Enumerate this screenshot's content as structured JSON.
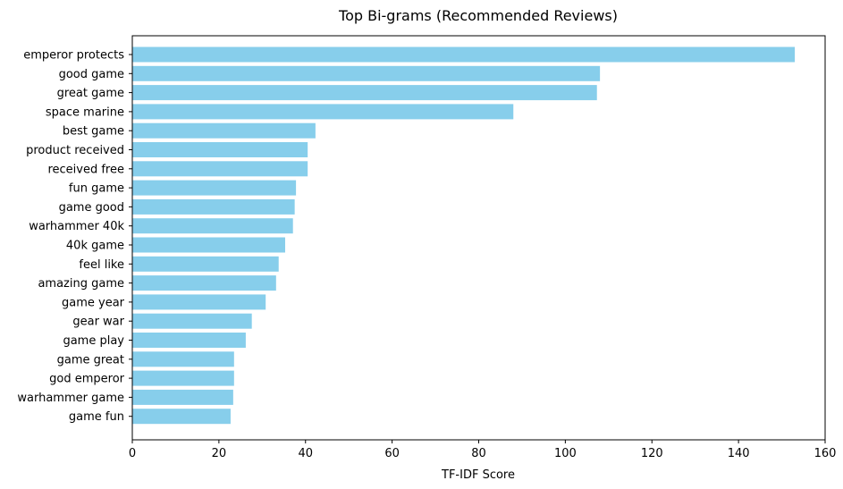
{
  "chart_data": {
    "type": "bar",
    "orientation": "horizontal",
    "title": "Top Bi-grams (Recommended Reviews)",
    "xlabel": "TF-IDF Score",
    "ylabel": "",
    "xlim": [
      0,
      160
    ],
    "xticks": [
      0,
      20,
      40,
      60,
      80,
      100,
      120,
      140,
      160
    ],
    "bar_color": "#87ceeb",
    "categories": [
      "emperor protects",
      "good game",
      "great game",
      "space marine",
      "best game",
      "product received",
      "received free",
      "fun game",
      "game good",
      "warhammer 40k",
      "40k game",
      "feel like",
      "amazing game",
      "game year",
      "gear war",
      "game play",
      "game great",
      "god emperor",
      "warhammer game",
      "game fun"
    ],
    "values": [
      153,
      108,
      107.3,
      88,
      42.3,
      40.5,
      40.5,
      37.8,
      37.5,
      37.1,
      35.3,
      33.8,
      33.2,
      30.8,
      27.6,
      26.2,
      23.5,
      23.5,
      23.3,
      22.7
    ]
  }
}
